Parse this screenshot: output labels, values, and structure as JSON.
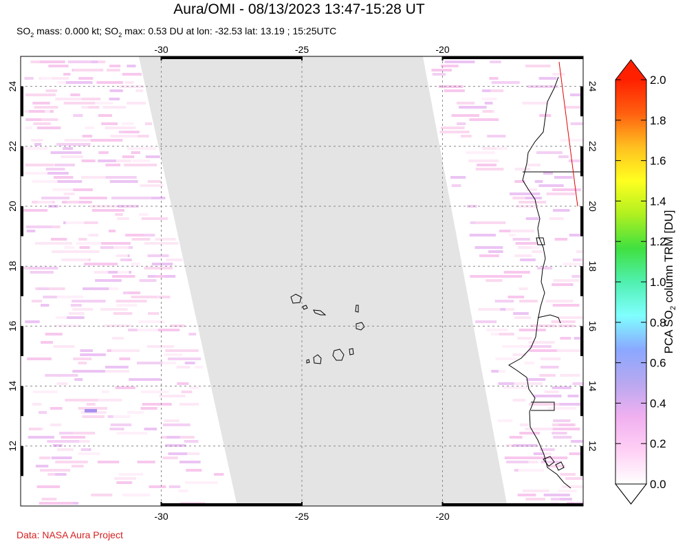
{
  "title": "Aura/OMI - 08/13/2023 13:47-15:28 UT",
  "subtitle": {
    "part1": "SO",
    "sub1": "2",
    "part2": " mass: 0.000 kt; SO",
    "sub2": "2",
    "part3": " max: 0.53 DU at lon: -32.53 lat: 13.19 ; 15:25UTC"
  },
  "credit": "Data: NASA Aura Project",
  "colorbar": {
    "label_part1": "PCA SO",
    "label_sub": "2",
    "label_part2": " column TRM [DU]",
    "min": 0.0,
    "max": 2.0,
    "ticks": [
      "0.0",
      "0.2",
      "0.4",
      "0.6",
      "0.8",
      "1.0",
      "1.2",
      "1.4",
      "1.6",
      "1.8",
      "2.0"
    ],
    "colors": [
      "#ffffff",
      "#ffd0f5",
      "#f0b0f0",
      "#b8a8f0",
      "#8aa8ff",
      "#80ffff",
      "#50f0b0",
      "#40e040",
      "#b0f020",
      "#ffff20",
      "#ffc020",
      "#ff6010",
      "#ff2000"
    ]
  },
  "map": {
    "lon_range": [
      -35,
      -15
    ],
    "lat_range": [
      10,
      25
    ],
    "lon_ticks": [
      -30,
      -25,
      -20
    ],
    "lat_ticks": [
      12,
      14,
      16,
      18,
      20,
      22,
      24
    ],
    "lon_tick_labels": [
      "-30",
      "-25",
      "-20"
    ],
    "lat_tick_labels": [
      "12",
      "14",
      "16",
      "18",
      "20",
      "22",
      "24"
    ],
    "no_data_color": "#e4e4e4",
    "swath_gap_polygon": [
      [
        -30.8,
        25
      ],
      [
        -20.7,
        25
      ],
      [
        -17.7,
        10
      ],
      [
        -27.3,
        10
      ]
    ],
    "max_point": {
      "lon": -32.53,
      "lat": 13.19,
      "value": 0.53
    }
  }
}
